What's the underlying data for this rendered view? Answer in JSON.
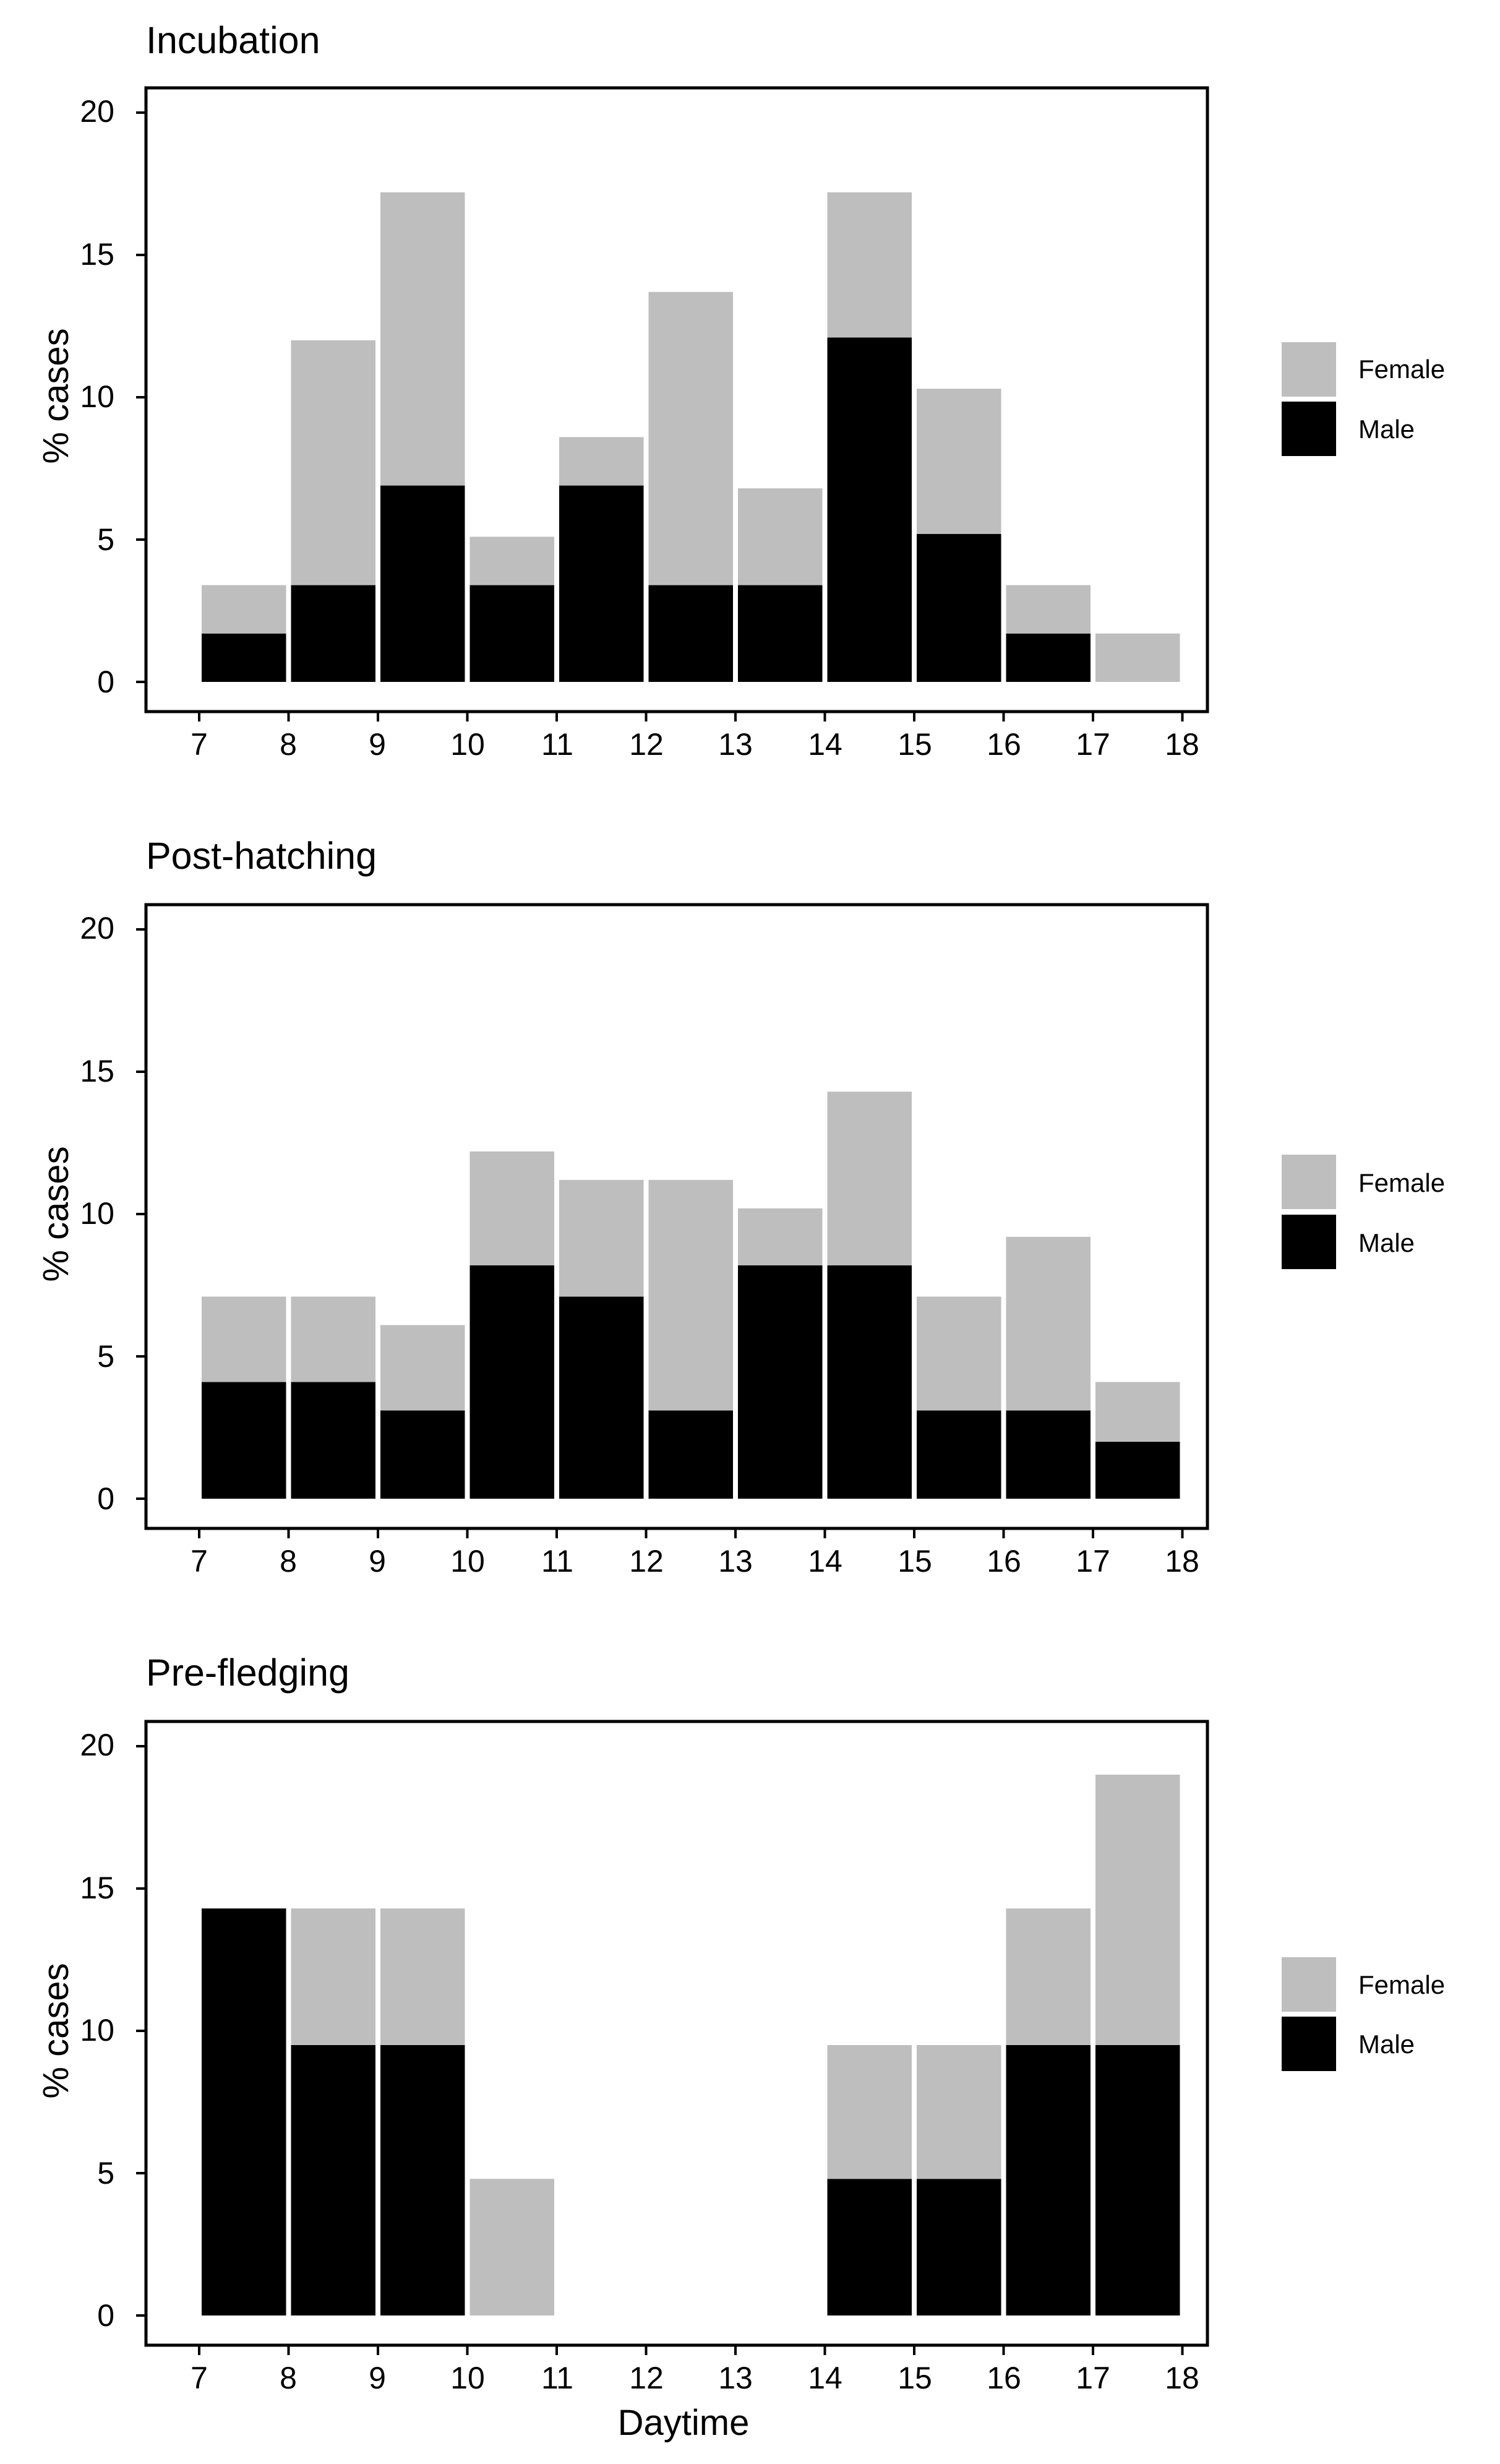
{
  "colors": {
    "female": "#bebebe",
    "male": "#000000",
    "background": "#ffffff"
  },
  "figure": {
    "xlabel": "Daytime"
  },
  "legend": {
    "female_label": "Female",
    "male_label": "Male"
  },
  "chart_data": [
    {
      "type": "bar",
      "stacked": true,
      "title": "Incubation",
      "ylabel": "% cases",
      "xlabel": "",
      "ylim": [
        0,
        20
      ],
      "yticks": [
        0,
        5,
        10,
        15,
        20
      ],
      "xticks": [
        7,
        8,
        9,
        10,
        11,
        12,
        13,
        14,
        15,
        16,
        17,
        18
      ],
      "categories": [
        "7-8",
        "8-9",
        "9-10",
        "10-11",
        "11-12",
        "12-13",
        "13-14",
        "14-15",
        "15-16",
        "16-17",
        "17-18"
      ],
      "series": [
        {
          "name": "Male",
          "values": [
            1.7,
            3.4,
            6.9,
            3.4,
            6.9,
            3.4,
            3.4,
            12.1,
            5.2,
            1.7,
            0
          ]
        },
        {
          "name": "Female",
          "values": [
            1.7,
            8.6,
            10.3,
            1.7,
            1.7,
            10.3,
            3.4,
            5.1,
            5.1,
            1.7,
            1.7
          ]
        }
      ],
      "legend": "right"
    },
    {
      "type": "bar",
      "stacked": true,
      "title": "Post-hatching",
      "ylabel": "% cases",
      "xlabel": "",
      "ylim": [
        0,
        20
      ],
      "yticks": [
        0,
        5,
        10,
        15,
        20
      ],
      "xticks": [
        7,
        8,
        9,
        10,
        11,
        12,
        13,
        14,
        15,
        16,
        17,
        18
      ],
      "categories": [
        "7-8",
        "8-9",
        "9-10",
        "10-11",
        "11-12",
        "12-13",
        "13-14",
        "14-15",
        "15-16",
        "16-17",
        "17-18"
      ],
      "series": [
        {
          "name": "Male",
          "values": [
            4.1,
            4.1,
            3.1,
            8.2,
            7.1,
            3.1,
            8.2,
            8.2,
            3.1,
            3.1,
            2.0
          ]
        },
        {
          "name": "Female",
          "values": [
            3.0,
            3.0,
            3.0,
            4.0,
            4.1,
            8.1,
            2.0,
            6.1,
            4.0,
            6.1,
            2.1
          ]
        }
      ],
      "legend": "right"
    },
    {
      "type": "bar",
      "stacked": true,
      "title": "Pre-fledging",
      "ylabel": "% cases",
      "xlabel": "Daytime",
      "ylim": [
        0,
        20
      ],
      "yticks": [
        0,
        5,
        10,
        15,
        20
      ],
      "xticks": [
        7,
        8,
        9,
        10,
        11,
        12,
        13,
        14,
        15,
        16,
        17,
        18
      ],
      "categories": [
        "7-8",
        "8-9",
        "9-10",
        "10-11",
        "11-12",
        "12-13",
        "13-14",
        "14-15",
        "15-16",
        "16-17",
        "17-18"
      ],
      "series": [
        {
          "name": "Male",
          "values": [
            14.3,
            9.5,
            9.5,
            0,
            0,
            0,
            0,
            4.8,
            4.8,
            9.5,
            9.5
          ]
        },
        {
          "name": "Female",
          "values": [
            0,
            4.8,
            4.8,
            4.8,
            0,
            0,
            0,
            4.7,
            4.7,
            4.8,
            9.5
          ]
        }
      ],
      "legend": "right"
    }
  ]
}
